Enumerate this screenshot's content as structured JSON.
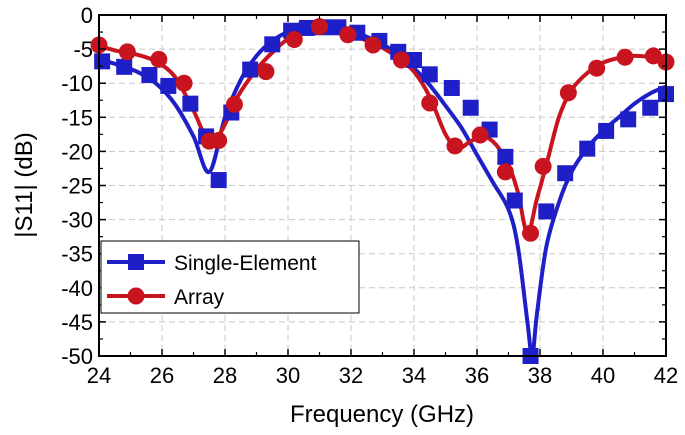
{
  "chart_data": {
    "type": "line",
    "title": "",
    "xlabel": "Frequency (GHz)",
    "ylabel": "|S11| (dB)",
    "xlim": [
      24,
      42
    ],
    "ylim": [
      -50,
      0
    ],
    "x_ticks": [
      24,
      26,
      28,
      30,
      32,
      34,
      36,
      38,
      40,
      42
    ],
    "x_tick_labels": [
      "24",
      "26",
      "28",
      "30",
      "32",
      "34",
      "36",
      "38",
      "40",
      "42"
    ],
    "y_ticks": [
      0,
      -5,
      -10,
      -15,
      -20,
      -25,
      -30,
      -35,
      -40,
      -45,
      -50
    ],
    "y_tick_labels": [
      "0",
      "-5",
      "-10",
      "-15",
      "-20",
      "-25",
      "-30",
      "-35",
      "-40",
      "-45",
      "-50"
    ],
    "grid": true,
    "legend_position": "bottom-left",
    "series": [
      {
        "name": "Single-Element",
        "color": "#1f1fc8",
        "marker": "square",
        "x": [
          24.0,
          24.6,
          25.2,
          25.8,
          26.4,
          27.0,
          27.5,
          28.0,
          28.5,
          29.0,
          29.5,
          30.0,
          30.5,
          31.0,
          31.5,
          32.0,
          32.5,
          33.0,
          33.5,
          34.0,
          34.5,
          35.0,
          35.5,
          36.0,
          36.5,
          37.0,
          37.3,
          37.6,
          37.75,
          37.9,
          38.2,
          38.6,
          39.0,
          39.5,
          40.0,
          40.5,
          41.0,
          41.5,
          42.0
        ],
        "y": [
          -6.5,
          -7.3,
          -8.3,
          -10.0,
          -13.0,
          -17.8,
          -23.0,
          -15.0,
          -9.5,
          -6.0,
          -3.8,
          -2.5,
          -2.0,
          -1.8,
          -1.8,
          -2.3,
          -3.2,
          -4.3,
          -5.8,
          -7.8,
          -10.3,
          -13.3,
          -16.5,
          -20.5,
          -24.5,
          -28.5,
          -34.0,
          -45.0,
          -50.0,
          -44.0,
          -34.0,
          -27.5,
          -23.0,
          -19.5,
          -17.0,
          -15.0,
          -13.0,
          -11.5,
          -10.5
        ],
        "marker_x": [
          24.1,
          24.8,
          25.6,
          26.2,
          26.9,
          27.4,
          27.8,
          28.2,
          28.8,
          29.5,
          30.1,
          30.6,
          31.1,
          31.6,
          32.2,
          32.9,
          33.5,
          34.0,
          34.5,
          35.2,
          35.8,
          36.4,
          36.9,
          37.2,
          37.7,
          38.2,
          38.8,
          39.5,
          40.1,
          40.8,
          41.5,
          42.0
        ],
        "marker_y": [
          -6.8,
          -7.6,
          -8.8,
          -10.4,
          -13.0,
          -17.8,
          -24.2,
          -14.3,
          -8.0,
          -4.3,
          -2.3,
          -1.9,
          -1.8,
          -1.8,
          -2.6,
          -3.8,
          -5.4,
          -6.6,
          -8.7,
          -10.7,
          -13.6,
          -16.8,
          -20.8,
          -27.2,
          -50.0,
          -28.8,
          -23.2,
          -19.6,
          -17.0,
          -15.3,
          -13.6,
          -11.6
        ]
      },
      {
        "name": "Array",
        "color": "#c8141e",
        "marker": "circle",
        "x": [
          24.0,
          24.6,
          25.2,
          25.8,
          26.4,
          27.0,
          27.4,
          27.7,
          28.0,
          28.4,
          29.0,
          29.5,
          30.0,
          30.5,
          31.0,
          31.5,
          32.0,
          32.5,
          33.0,
          33.5,
          34.0,
          34.5,
          35.0,
          35.4,
          35.8,
          36.2,
          36.6,
          37.0,
          37.3,
          37.6,
          37.9,
          38.2,
          38.6,
          39.0,
          39.5,
          40.0,
          40.5,
          41.0,
          41.5,
          42.0
        ],
        "y": [
          -4.5,
          -5.3,
          -5.8,
          -6.8,
          -9.0,
          -14.0,
          -18.0,
          -18.2,
          -16.0,
          -12.0,
          -8.0,
          -5.5,
          -3.5,
          -2.4,
          -1.7,
          -2.0,
          -2.8,
          -3.8,
          -4.8,
          -6.3,
          -8.3,
          -12.0,
          -17.5,
          -19.5,
          -18.5,
          -17.8,
          -19.0,
          -22.0,
          -26.0,
          -32.0,
          -27.0,
          -22.0,
          -15.0,
          -11.0,
          -8.5,
          -7.0,
          -6.3,
          -6.0,
          -6.2,
          -7.0
        ],
        "marker_x": [
          24.0,
          24.9,
          25.9,
          26.7,
          27.5,
          27.8,
          28.3,
          29.3,
          30.2,
          31.0,
          31.9,
          32.7,
          33.6,
          34.5,
          35.3,
          36.1,
          36.9,
          37.7,
          38.1,
          38.9,
          39.8,
          40.7,
          41.6,
          42.0
        ],
        "marker_y": [
          -4.4,
          -5.4,
          -6.5,
          -10.0,
          -18.5,
          -18.4,
          -13.1,
          -8.3,
          -3.6,
          -1.7,
          -2.9,
          -4.4,
          -6.6,
          -12.9,
          -19.2,
          -17.6,
          -23.0,
          -32.0,
          -22.2,
          -11.4,
          -7.8,
          -6.2,
          -6.0,
          -6.9
        ]
      }
    ]
  }
}
